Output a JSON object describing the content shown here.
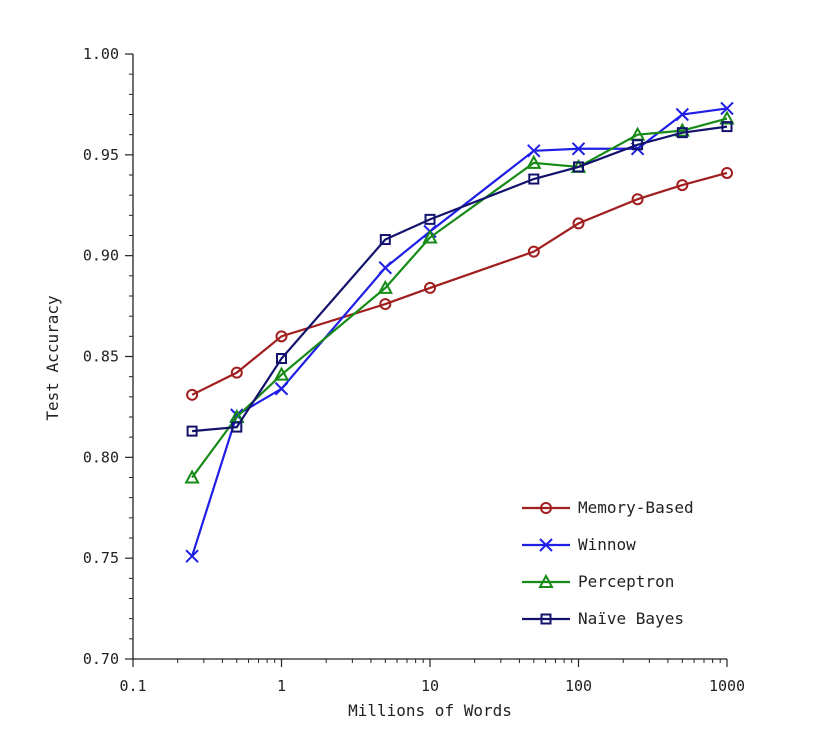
{
  "chart_data": {
    "type": "line",
    "xlabel": "Millions of Words",
    "ylabel": "Test Accuracy",
    "x_scale": "log",
    "xlim": [
      0.1,
      1000
    ],
    "ylim": [
      0.7,
      1.0
    ],
    "x_ticks": [
      0.1,
      1,
      10,
      100,
      1000
    ],
    "x_tick_labels": [
      "0.1",
      "1",
      "10",
      "100",
      "1000"
    ],
    "y_ticks": [
      0.7,
      0.75,
      0.8,
      0.85,
      0.9,
      0.95,
      1.0
    ],
    "y_tick_labels": [
      "0.70",
      "0.75",
      "0.80",
      "0.85",
      "0.90",
      "0.95",
      "1.00"
    ],
    "grid": false,
    "legend_position": "bottom-right",
    "x": [
      0.25,
      0.5,
      1,
      5,
      10,
      50,
      100,
      250,
      500,
      1000
    ],
    "series": [
      {
        "name": "Memory-Based",
        "color": "#a01e1e",
        "marker": "circle",
        "values": [
          0.831,
          0.842,
          0.86,
          0.876,
          0.884,
          0.902,
          0.916,
          0.928,
          0.935,
          0.941
        ]
      },
      {
        "name": "Winnow",
        "color": "#1f1fe6",
        "marker": "x",
        "values": [
          0.751,
          0.821,
          0.834,
          0.894,
          0.912,
          0.952,
          0.953,
          0.953,
          0.97,
          0.973
        ]
      },
      {
        "name": "Perceptron",
        "color": "#168a16",
        "marker": "triangle",
        "values": [
          0.79,
          0.82,
          0.841,
          0.884,
          0.909,
          0.946,
          0.944,
          0.96,
          0.962,
          0.968
        ]
      },
      {
        "name": "Naïve Bayes",
        "color": "#13136e",
        "marker": "square",
        "values": [
          0.813,
          0.815,
          0.849,
          0.908,
          0.918,
          0.938,
          0.944,
          0.955,
          0.961,
          0.964
        ]
      }
    ]
  }
}
